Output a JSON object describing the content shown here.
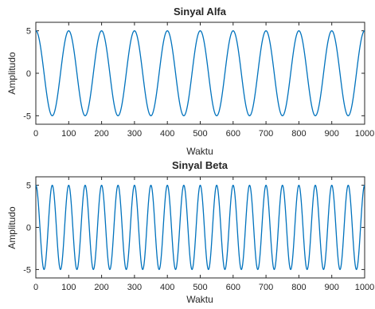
{
  "chart_data": [
    {
      "type": "line",
      "title": "Sinyal Alfa",
      "xlabel": "Waktu",
      "ylabel": "Amplitudo",
      "xlim": [
        0,
        1000
      ],
      "ylim": [
        -6,
        6
      ],
      "xticks": [
        0,
        100,
        200,
        300,
        400,
        500,
        600,
        700,
        800,
        900,
        1000
      ],
      "yticks": [
        -5,
        0,
        5
      ],
      "grid": false,
      "line_color": "#0072BD",
      "series": [
        {
          "function": "cos",
          "amplitude": 5,
          "period": 100,
          "phase": 0,
          "x": [
            0,
            1000
          ]
        }
      ]
    },
    {
      "type": "line",
      "title": "Sinyal Beta",
      "xlabel": "Waktu",
      "ylabel": "Amplitudo",
      "xlim": [
        0,
        1000
      ],
      "ylim": [
        -6,
        6
      ],
      "xticks": [
        0,
        100,
        200,
        300,
        400,
        500,
        600,
        700,
        800,
        900,
        1000
      ],
      "yticks": [
        -5,
        0,
        5
      ],
      "grid": false,
      "line_color": "#0072BD",
      "series": [
        {
          "function": "cos",
          "amplitude": 5,
          "period": 50,
          "phase": 0,
          "x": [
            0,
            1000
          ]
        }
      ]
    }
  ]
}
